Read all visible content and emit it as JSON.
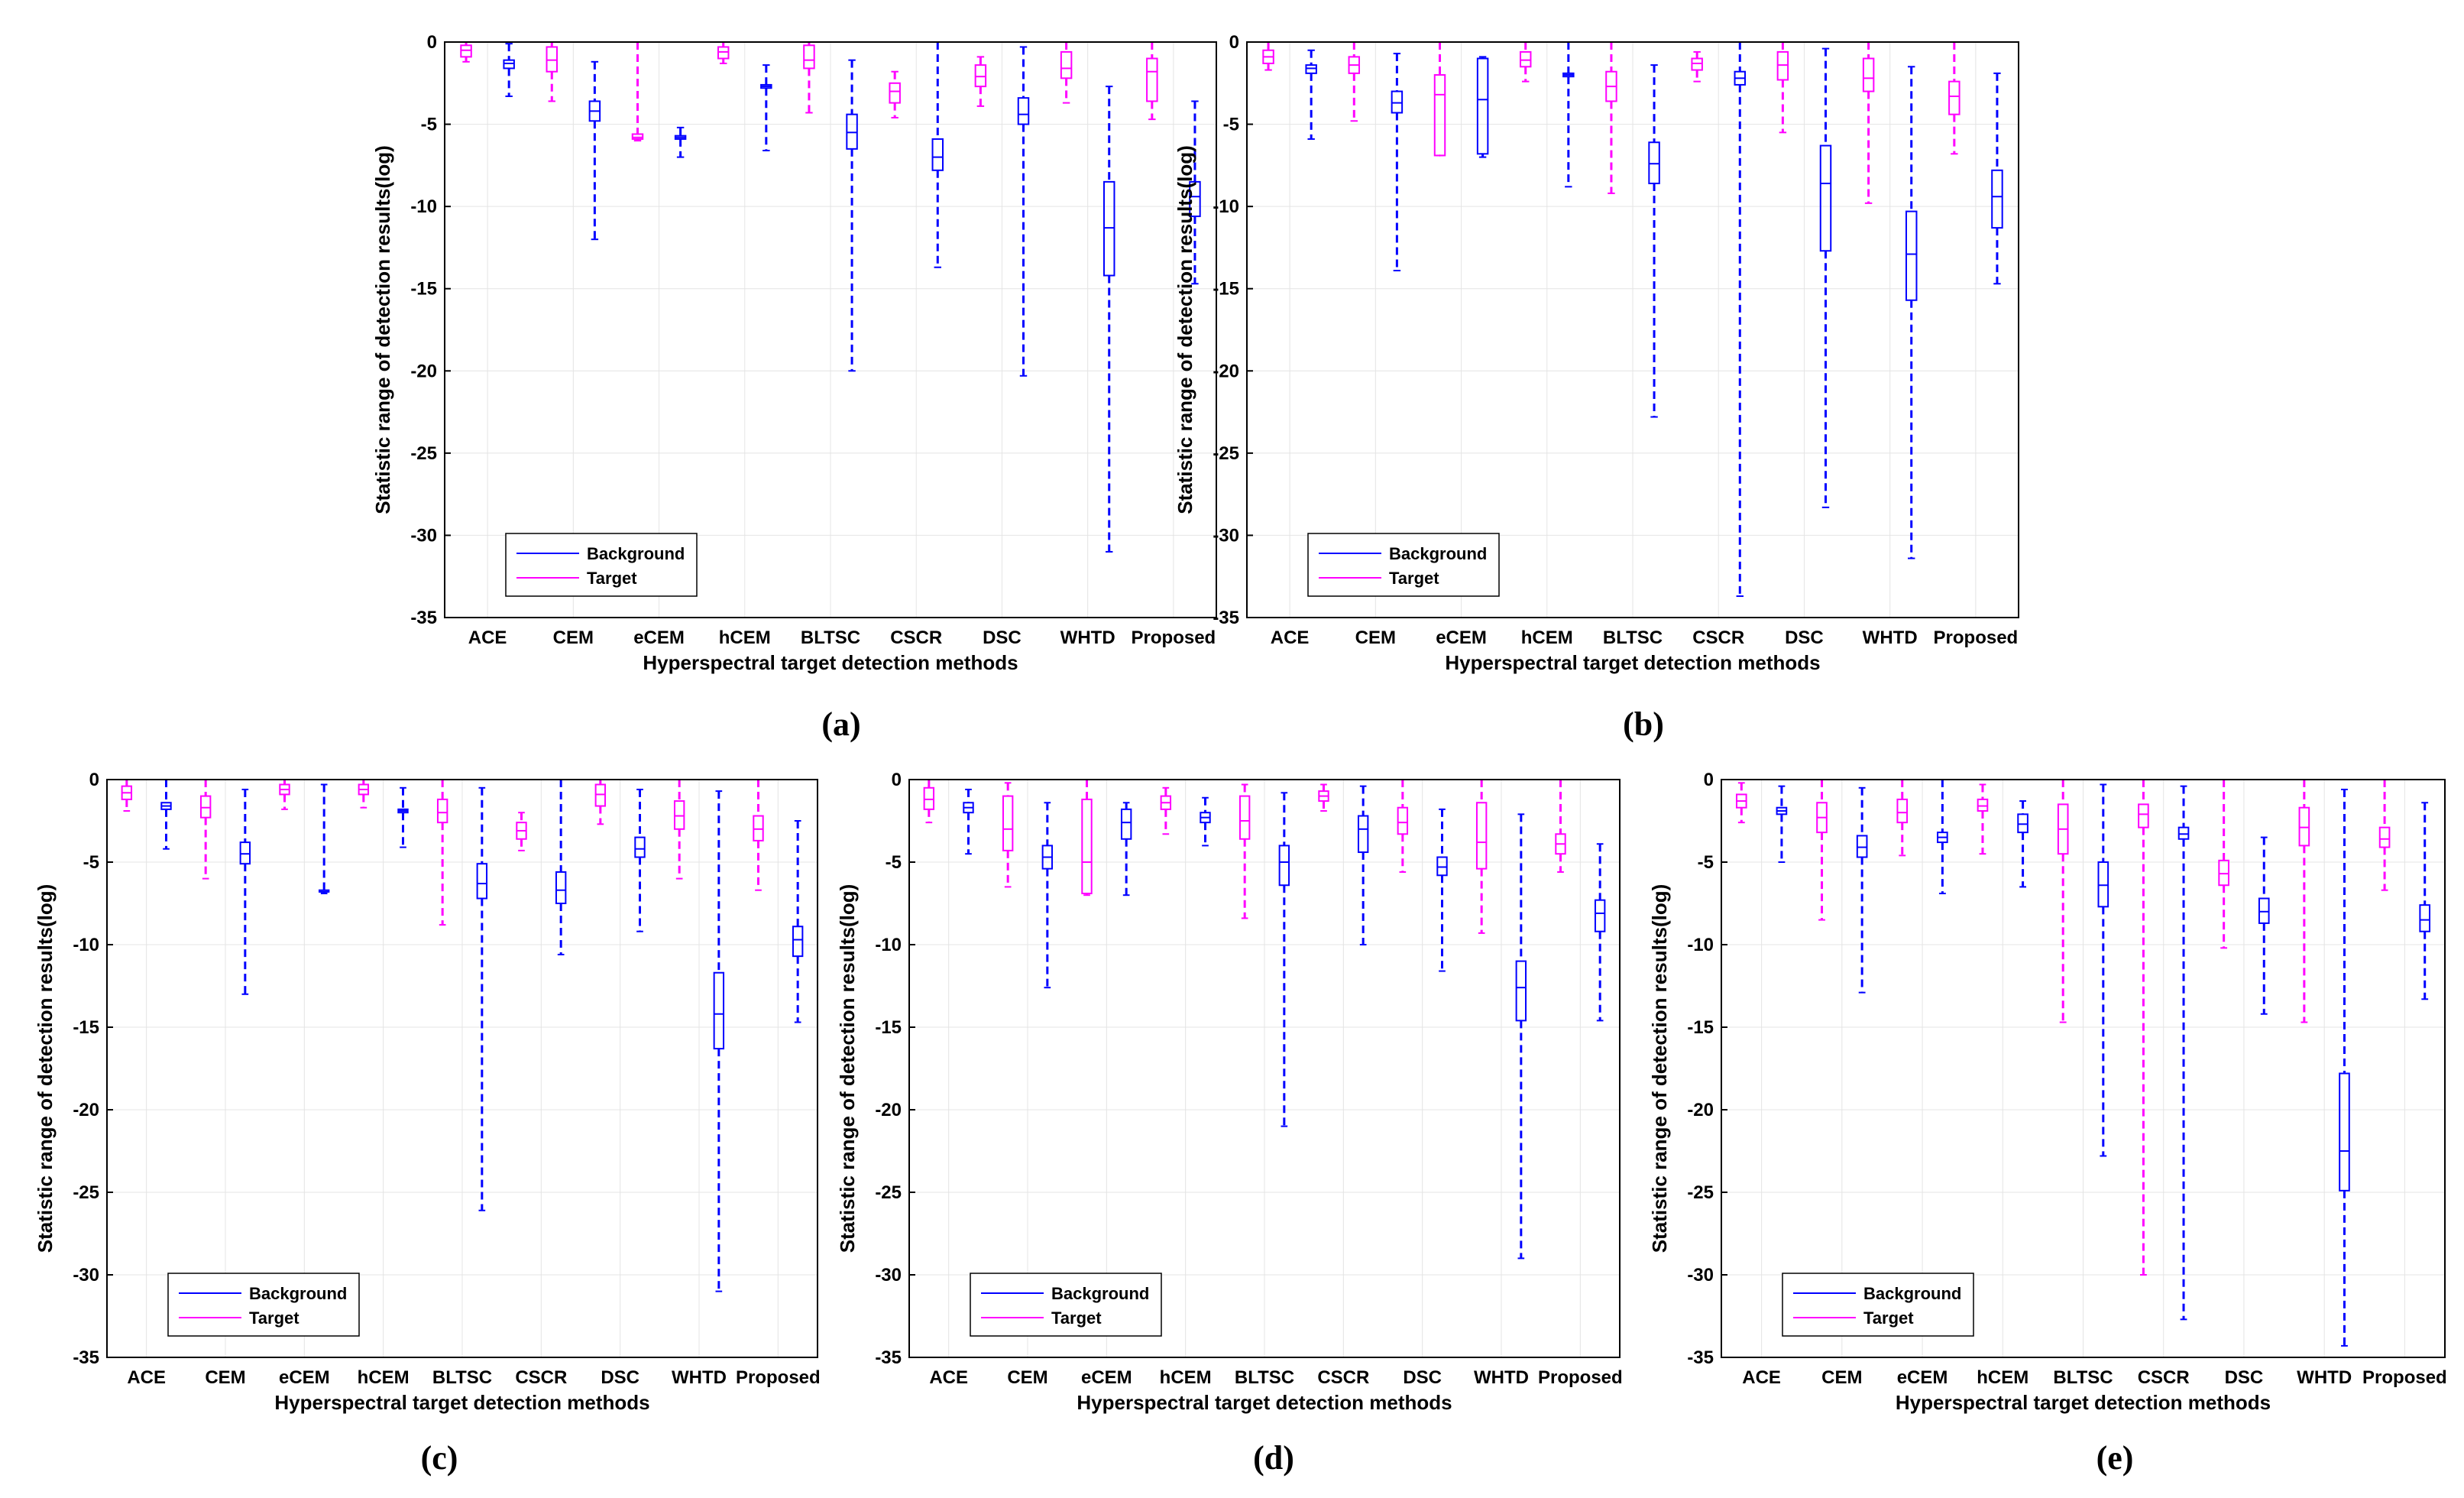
{
  "colors": {
    "background": "#0000ff",
    "target": "#ff00ff",
    "axis": "#000000",
    "grid": "#e4e4e4"
  },
  "common": {
    "ylabel": "Statistic range of detection results(log)",
    "xlabel": "Hyperspectral target detection methods",
    "yticks": [
      0,
      -5,
      -10,
      -15,
      -20,
      -25,
      -30,
      -35
    ],
    "ylim": [
      -35,
      0
    ],
    "methods": [
      "ACE",
      "CEM",
      "eCEM",
      "hCEM",
      "BLTSC",
      "CSCR",
      "DSC",
      "WHTD",
      "Proposed"
    ],
    "legend": [
      "Background",
      "Target"
    ]
  },
  "chart_data": [
    {
      "panel": "(a)",
      "type": "boxplot",
      "title": "",
      "legend_position": "bottom-left",
      "target": [
        {
          "min": -1.2,
          "q1": -0.9,
          "median": -0.5,
          "q3": -0.2,
          "max": 0
        },
        {
          "min": -3.6,
          "q1": -1.8,
          "median": -1.1,
          "q3": -0.3,
          "max": 0
        },
        {
          "min": -6.0,
          "q1": -5.9,
          "median": -5.8,
          "q3": -5.6,
          "max": 0
        },
        {
          "min": -1.3,
          "q1": -1.0,
          "median": -0.6,
          "q3": -0.3,
          "max": 0
        },
        {
          "min": -4.3,
          "q1": -1.6,
          "median": -1.1,
          "q3": -0.2,
          "max": 0
        },
        {
          "min": -4.6,
          "q1": -3.7,
          "median": -3.0,
          "q3": -2.5,
          "max": -1.8
        },
        {
          "min": -3.9,
          "q1": -2.7,
          "median": -2.1,
          "q3": -1.4,
          "max": -0.9
        },
        {
          "min": -3.7,
          "q1": -2.2,
          "median": -1.6,
          "q3": -0.6,
          "max": 0
        },
        {
          "min": -4.7,
          "q1": -3.6,
          "median": -1.8,
          "q3": -1.0,
          "max": 0
        }
      ],
      "background": [
        {
          "min": -3.3,
          "q1": -1.6,
          "median": -1.3,
          "q3": -1.1,
          "max": -0.1
        },
        {
          "min": -12.0,
          "q1": -4.8,
          "median": -4.2,
          "q3": -3.6,
          "max": -1.2
        },
        {
          "min": -7.0,
          "q1": -5.9,
          "median": -5.8,
          "q3": -5.7,
          "max": -5.2
        },
        {
          "min": -6.6,
          "q1": -2.8,
          "median": -2.7,
          "q3": -2.6,
          "max": -1.4
        },
        {
          "min": -20.0,
          "q1": -6.5,
          "median": -5.5,
          "q3": -4.4,
          "max": -1.1
        },
        {
          "min": -13.7,
          "q1": -7.8,
          "median": -7.0,
          "q3": -5.9,
          "max": 0
        },
        {
          "min": -20.3,
          "q1": -5.0,
          "median": -4.4,
          "q3": -3.4,
          "max": -0.3
        },
        {
          "min": -31.0,
          "q1": -14.2,
          "median": -11.3,
          "q3": -8.5,
          "max": -2.7
        },
        {
          "min": -14.7,
          "q1": -10.6,
          "median": -9.4,
          "q3": -8.5,
          "max": -3.6
        }
      ]
    },
    {
      "panel": "(b)",
      "type": "boxplot",
      "title": "",
      "legend_position": "bottom-left",
      "target": [
        {
          "min": -1.7,
          "q1": -1.3,
          "median": -0.9,
          "q3": -0.5,
          "max": 0
        },
        {
          "min": -4.8,
          "q1": -1.9,
          "median": -1.4,
          "q3": -0.9,
          "max": 0
        },
        {
          "min": -6.9,
          "q1": -6.9,
          "median": -3.2,
          "q3": -2.0,
          "max": 0
        },
        {
          "min": -2.4,
          "q1": -1.5,
          "median": -1.1,
          "q3": -0.6,
          "max": 0
        },
        {
          "min": -9.2,
          "q1": -3.6,
          "median": -2.7,
          "q3": -1.8,
          "max": 0
        },
        {
          "min": -2.4,
          "q1": -1.7,
          "median": -1.3,
          "q3": -1.0,
          "max": -0.6
        },
        {
          "min": -5.5,
          "q1": -2.3,
          "median": -1.4,
          "q3": -0.6,
          "max": 0
        },
        {
          "min": -9.8,
          "q1": -3.0,
          "median": -2.2,
          "q3": -1.0,
          "max": 0
        },
        {
          "min": -6.8,
          "q1": -4.4,
          "median": -3.3,
          "q3": -2.4,
          "max": 0
        }
      ],
      "background": [
        {
          "min": -5.9,
          "q1": -1.9,
          "median": -1.6,
          "q3": -1.4,
          "max": -0.5
        },
        {
          "min": -13.9,
          "q1": -4.3,
          "median": -3.7,
          "q3": -3.0,
          "max": -0.7
        },
        {
          "min": -7.0,
          "q1": -6.8,
          "median": -3.5,
          "q3": -1.0,
          "max": -0.9
        },
        {
          "min": -8.8,
          "q1": -2.1,
          "median": -2.0,
          "q3": -1.9,
          "max": 0
        },
        {
          "min": -22.8,
          "q1": -8.6,
          "median": -7.4,
          "q3": -6.1,
          "max": -1.4
        },
        {
          "min": -33.7,
          "q1": -2.6,
          "median": -2.2,
          "q3": -1.8,
          "max": 0
        },
        {
          "min": -28.3,
          "q1": -12.7,
          "median": -8.6,
          "q3": -6.3,
          "max": -0.4
        },
        {
          "min": -31.4,
          "q1": -15.7,
          "median": -12.9,
          "q3": -10.3,
          "max": -1.5
        },
        {
          "min": -14.7,
          "q1": -11.3,
          "median": -9.4,
          "q3": -7.8,
          "max": -1.9
        }
      ]
    },
    {
      "panel": "(c)",
      "type": "boxplot",
      "title": "",
      "legend_position": "bottom-left",
      "target": [
        {
          "min": -1.9,
          "q1": -1.2,
          "median": -0.8,
          "q3": -0.4,
          "max": 0
        },
        {
          "min": -6.0,
          "q1": -2.3,
          "median": -1.7,
          "q3": -1.0,
          "max": 0
        },
        {
          "min": -1.8,
          "q1": -0.9,
          "median": -0.6,
          "q3": -0.3,
          "max": 0
        },
        {
          "min": -1.7,
          "q1": -0.9,
          "median": -0.6,
          "q3": -0.3,
          "max": 0
        },
        {
          "min": -8.8,
          "q1": -2.6,
          "median": -2.0,
          "q3": -1.2,
          "max": 0
        },
        {
          "min": -4.3,
          "q1": -3.6,
          "median": -3.1,
          "q3": -2.6,
          "max": -2.0
        },
        {
          "min": -2.7,
          "q1": -1.6,
          "median": -0.9,
          "q3": -0.3,
          "max": 0
        },
        {
          "min": -6.0,
          "q1": -3.0,
          "median": -2.2,
          "q3": -1.3,
          "max": 0
        },
        {
          "min": -6.7,
          "q1": -3.7,
          "median": -3.0,
          "q3": -2.2,
          "max": 0
        }
      ],
      "background": [
        {
          "min": -4.2,
          "q1": -1.8,
          "median": -1.6,
          "q3": -1.4,
          "max": 0
        },
        {
          "min": -13.0,
          "q1": -5.1,
          "median": -4.5,
          "q3": -3.8,
          "max": -0.6
        },
        {
          "min": -6.9,
          "q1": -6.8,
          "median": -6.8,
          "q3": -6.7,
          "max": -0.3
        },
        {
          "min": -4.1,
          "q1": -2.0,
          "median": -1.9,
          "q3": -1.8,
          "max": -0.5
        },
        {
          "min": -26.1,
          "q1": -7.2,
          "median": -6.3,
          "q3": -5.1,
          "max": -0.5
        },
        {
          "min": -10.6,
          "q1": -7.5,
          "median": -6.7,
          "q3": -5.6,
          "max": 0
        },
        {
          "min": -9.2,
          "q1": -4.7,
          "median": -4.2,
          "q3": -3.5,
          "max": -0.6
        },
        {
          "min": -31.0,
          "q1": -16.3,
          "median": -14.2,
          "q3": -11.7,
          "max": -0.7
        },
        {
          "min": -14.7,
          "q1": -10.7,
          "median": -9.7,
          "q3": -8.9,
          "max": -2.5
        }
      ]
    },
    {
      "panel": "(d)",
      "type": "boxplot",
      "title": "",
      "legend_position": "bottom-left",
      "target": [
        {
          "min": -2.6,
          "q1": -1.8,
          "median": -1.2,
          "q3": -0.5,
          "max": 0
        },
        {
          "min": -6.5,
          "q1": -4.3,
          "median": -3.0,
          "q3": -1.0,
          "max": -0.2
        },
        {
          "min": -7.0,
          "q1": -6.9,
          "median": -5.0,
          "q3": -1.2,
          "max": 0
        },
        {
          "min": -3.3,
          "q1": -1.8,
          "median": -1.4,
          "q3": -1.0,
          "max": -0.5
        },
        {
          "min": -8.4,
          "q1": -3.6,
          "median": -2.5,
          "q3": -1.0,
          "max": -0.3
        },
        {
          "min": -1.9,
          "q1": -1.3,
          "median": -1.0,
          "q3": -0.7,
          "max": -0.3
        },
        {
          "min": -5.6,
          "q1": -3.3,
          "median": -2.6,
          "q3": -1.7,
          "max": 0
        },
        {
          "min": -9.3,
          "q1": -5.4,
          "median": -3.8,
          "q3": -1.4,
          "max": 0
        },
        {
          "min": -5.6,
          "q1": -4.5,
          "median": -3.9,
          "q3": -3.3,
          "max": 0
        }
      ],
      "background": [
        {
          "min": -4.5,
          "q1": -2.0,
          "median": -1.7,
          "q3": -1.4,
          "max": -0.6
        },
        {
          "min": -12.6,
          "q1": -5.4,
          "median": -4.7,
          "q3": -4.0,
          "max": -1.4
        },
        {
          "min": -7.0,
          "q1": -3.6,
          "median": -2.6,
          "q3": -1.8,
          "max": -1.4
        },
        {
          "min": -4.0,
          "q1": -2.6,
          "median": -2.3,
          "q3": -2.0,
          "max": -1.1
        },
        {
          "min": -21.0,
          "q1": -6.4,
          "median": -5.0,
          "q3": -4.0,
          "max": -0.8
        },
        {
          "min": -10.0,
          "q1": -4.4,
          "median": -3.0,
          "q3": -2.2,
          "max": -0.4
        },
        {
          "min": -11.6,
          "q1": -5.8,
          "median": -5.3,
          "q3": -4.7,
          "max": -1.8
        },
        {
          "min": -29.0,
          "q1": -14.6,
          "median": -12.6,
          "q3": -11.0,
          "max": -2.1
        },
        {
          "min": -14.6,
          "q1": -9.2,
          "median": -8.1,
          "q3": -7.3,
          "max": -3.9
        }
      ]
    },
    {
      "panel": "(e)",
      "type": "boxplot",
      "title": "",
      "legend_position": "bottom-left",
      "target": [
        {
          "min": -2.6,
          "q1": -1.7,
          "median": -1.3,
          "q3": -0.9,
          "max": -0.2
        },
        {
          "min": -8.5,
          "q1": -3.2,
          "median": -2.3,
          "q3": -1.4,
          "max": 0
        },
        {
          "min": -4.6,
          "q1": -2.6,
          "median": -2.0,
          "q3": -1.2,
          "max": 0
        },
        {
          "min": -4.5,
          "q1": -1.9,
          "median": -1.6,
          "q3": -1.2,
          "max": -0.3
        },
        {
          "min": -14.7,
          "q1": -4.5,
          "median": -3.0,
          "q3": -1.5,
          "max": 0
        },
        {
          "min": -30.0,
          "q1": -2.9,
          "median": -2.1,
          "q3": -1.5,
          "max": 0
        },
        {
          "min": -10.2,
          "q1": -6.4,
          "median": -5.7,
          "q3": -4.9,
          "max": 0
        },
        {
          "min": -14.7,
          "q1": -4.0,
          "median": -2.9,
          "q3": -1.7,
          "max": 0
        },
        {
          "min": -6.7,
          "q1": -4.1,
          "median": -3.6,
          "q3": -2.9,
          "max": 0
        }
      ],
      "background": [
        {
          "min": -5.0,
          "q1": -2.1,
          "median": -1.9,
          "q3": -1.7,
          "max": -0.4
        },
        {
          "min": -12.9,
          "q1": -4.7,
          "median": -4.1,
          "q3": -3.4,
          "max": -0.5
        },
        {
          "min": -6.9,
          "q1": -3.8,
          "median": -3.5,
          "q3": -3.2,
          "max": 0
        },
        {
          "min": -6.5,
          "q1": -3.2,
          "median": -2.7,
          "q3": -2.1,
          "max": -1.3
        },
        {
          "min": -22.8,
          "q1": -7.7,
          "median": -6.4,
          "q3": -5.0,
          "max": -0.3
        },
        {
          "min": -32.7,
          "q1": -3.6,
          "median": -3.3,
          "q3": -2.9,
          "max": -0.4
        },
        {
          "min": -14.2,
          "q1": -8.7,
          "median": -8.0,
          "q3": -7.2,
          "max": -3.5
        },
        {
          "min": -34.3,
          "q1": -24.9,
          "median": -22.5,
          "q3": -17.8,
          "max": -0.6
        },
        {
          "min": -13.3,
          "q1": -9.2,
          "median": -8.5,
          "q3": -7.6,
          "max": -1.4
        }
      ]
    }
  ]
}
